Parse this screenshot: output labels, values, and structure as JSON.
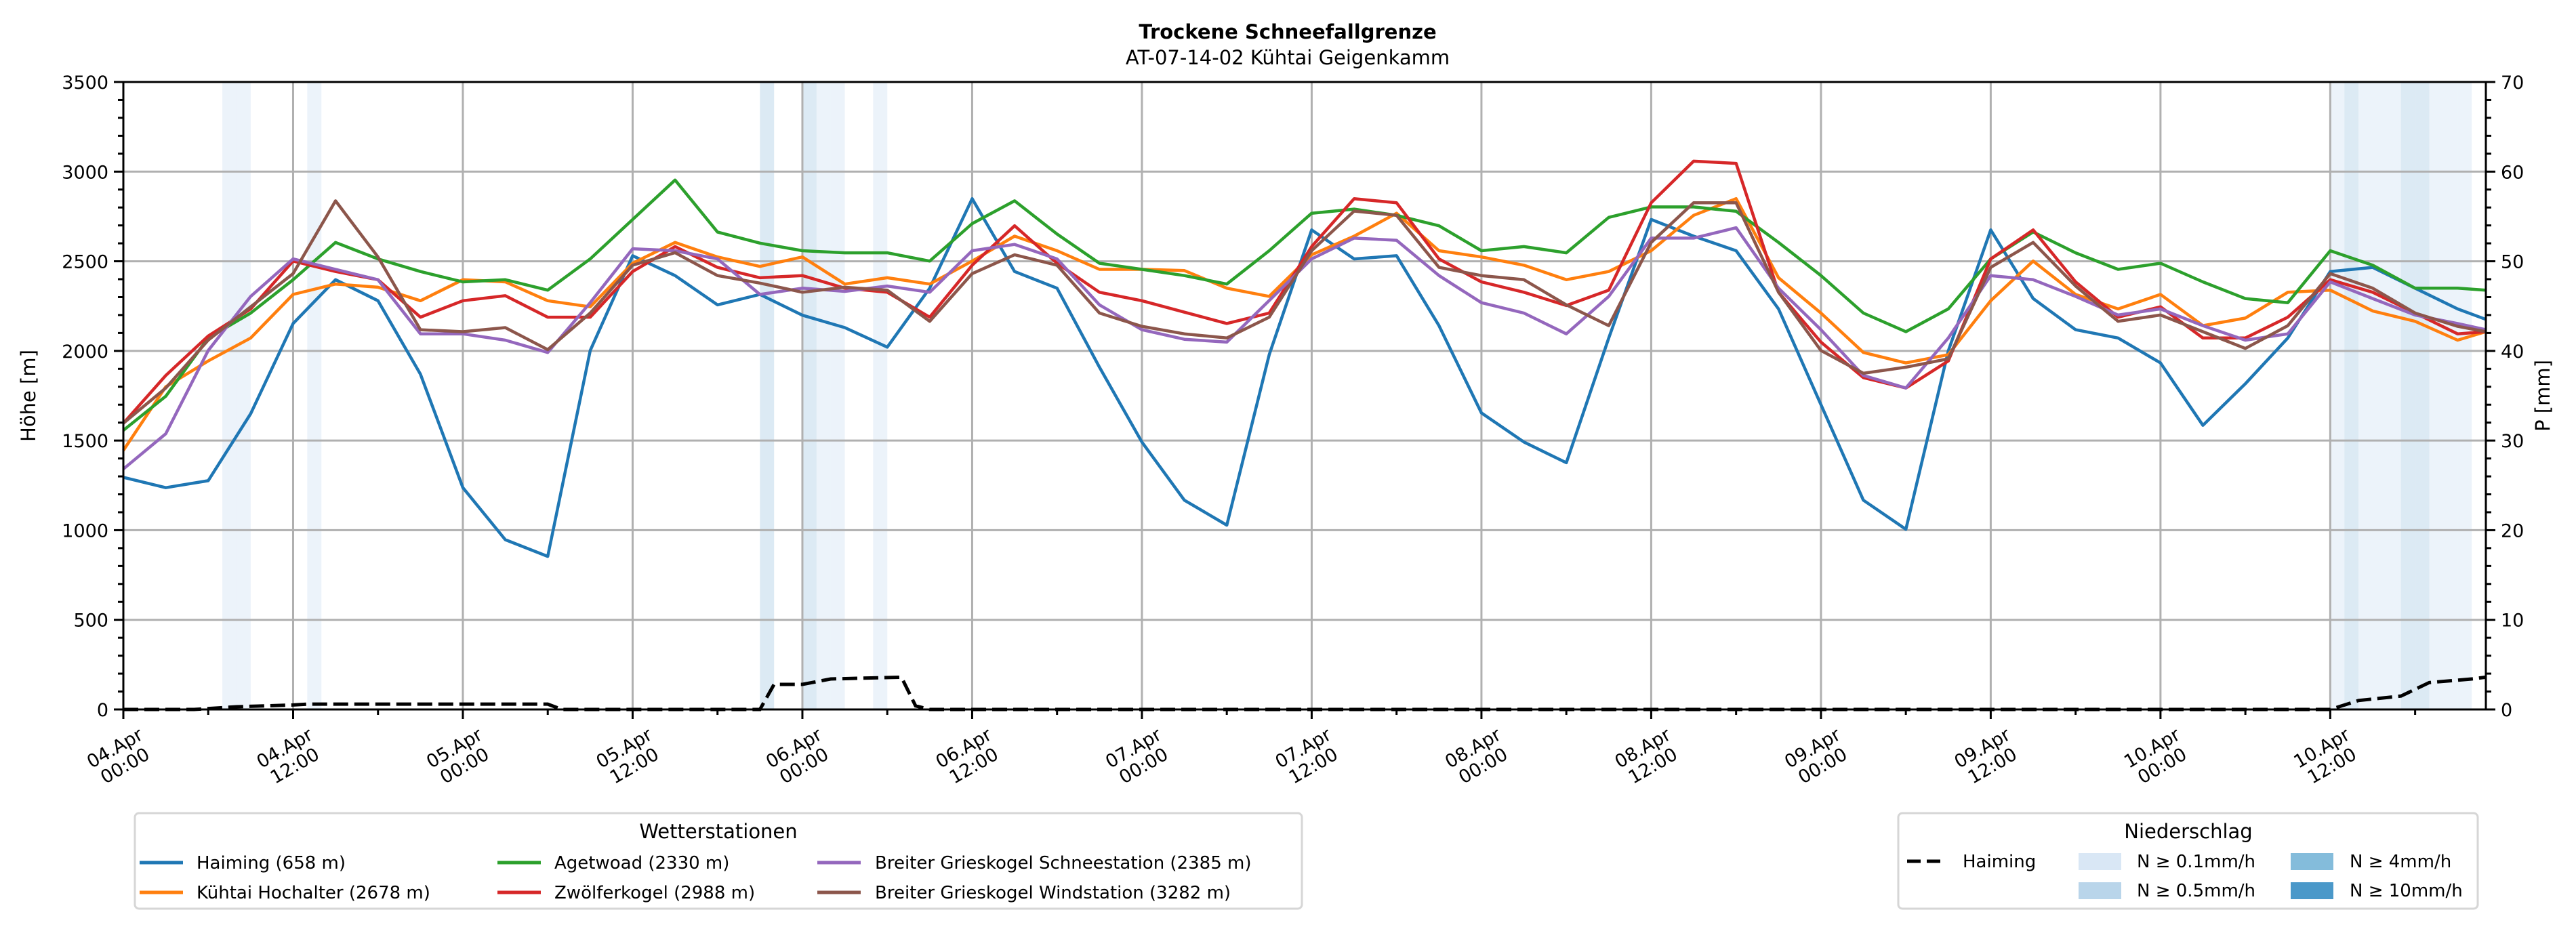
{
  "chart_data": {
    "type": "line",
    "title": "Trockene Schneefallgrenze",
    "subtitle": "AT-07-14-02 Kühtai Geigenkamm",
    "ylabel": "Höhe [m]",
    "ylabel_right": "P [mm]",
    "ylim": [
      0,
      3500
    ],
    "ylim_right": [
      0,
      70
    ],
    "xlim_hours": [
      0,
      167
    ],
    "grid": true,
    "y_ticks": [
      "0",
      "500",
      "1000",
      "1500",
      "2000",
      "2500",
      "3000",
      "3500"
    ],
    "y_right_ticks": [
      "0",
      "10",
      "20",
      "30",
      "40",
      "50",
      "60",
      "70"
    ],
    "x_ticks": [
      [
        "04.Apr",
        "00:00"
      ],
      [
        "04.Apr",
        "12:00"
      ],
      [
        "05.Apr",
        "00:00"
      ],
      [
        "05.Apr",
        "12:00"
      ],
      [
        "06.Apr",
        "00:00"
      ],
      [
        "06.Apr",
        "12:00"
      ],
      [
        "07.Apr",
        "00:00"
      ],
      [
        "07.Apr",
        "12:00"
      ],
      [
        "08.Apr",
        "00:00"
      ],
      [
        "08.Apr",
        "12:00"
      ],
      [
        "09.Apr",
        "00:00"
      ],
      [
        "09.Apr",
        "12:00"
      ],
      [
        "10.Apr",
        "00:00"
      ],
      [
        "10.Apr",
        "12:00"
      ]
    ],
    "x_hours": [
      0,
      3,
      6,
      9,
      12,
      15,
      18,
      21,
      24,
      27,
      30,
      33,
      36,
      39,
      42,
      45,
      48,
      51,
      54,
      57,
      60,
      63,
      66,
      69,
      72,
      75,
      78,
      81,
      84,
      87,
      90,
      93,
      96,
      99,
      102,
      105,
      108,
      111,
      114,
      117,
      120,
      123,
      126,
      129,
      132,
      135,
      138,
      141,
      144,
      147,
      150,
      153,
      156,
      159,
      162,
      165,
      167
    ],
    "series": [
      {
        "name": "Haiming (658 m)",
        "color": "#1f77b4",
        "values": [
          1295,
          1237,
          1276,
          1650,
          2153,
          2397,
          2280,
          1870,
          1237,
          947,
          854,
          2002,
          2531,
          2420,
          2257,
          2315,
          2199,
          2130,
          2021,
          2350,
          2849,
          2443,
          2350,
          1909,
          1492,
          1167,
          1028,
          1979,
          2675,
          2513,
          2531,
          2141,
          1654,
          1492,
          1376,
          2072,
          2733,
          2640,
          2559,
          2234,
          1700,
          1167,
          1005,
          2000,
          2675,
          2292,
          2118,
          2072,
          1933,
          1585,
          1817,
          2072,
          2443,
          2466,
          2350,
          2234,
          2176
        ]
      },
      {
        "name": "Kühtai Hochalter (2678 m)",
        "color": "#ff7f0e",
        "values": [
          1445,
          1800,
          1944,
          2072,
          2315,
          2373,
          2355,
          2280,
          2397,
          2385,
          2280,
          2246,
          2489,
          2605,
          2524,
          2471,
          2524,
          2373,
          2408,
          2373,
          2501,
          2640,
          2559,
          2455,
          2455,
          2448,
          2350,
          2304,
          2536,
          2640,
          2768,
          2559,
          2524,
          2478,
          2397,
          2443,
          2559,
          2756,
          2849,
          2408,
          2211,
          1991,
          1933,
          1979,
          2280,
          2501,
          2315,
          2234,
          2315,
          2141,
          2183,
          2327,
          2339,
          2223,
          2165,
          2060,
          2107
        ]
      },
      {
        "name": "Agetwoad (2330 m)",
        "color": "#2ca02c",
        "values": [
          1557,
          1747,
          2072,
          2211,
          2397,
          2605,
          2513,
          2443,
          2385,
          2397,
          2339,
          2513,
          2733,
          2953,
          2663,
          2601,
          2559,
          2547,
          2547,
          2501,
          2710,
          2837,
          2652,
          2489,
          2455,
          2420,
          2373,
          2559,
          2768,
          2791,
          2756,
          2698,
          2559,
          2582,
          2547,
          2745,
          2803,
          2803,
          2779,
          2605,
          2420,
          2211,
          2107,
          2234,
          2513,
          2663,
          2547,
          2455,
          2489,
          2385,
          2292,
          2269,
          2559,
          2478,
          2350,
          2350,
          2339
        ]
      },
      {
        "name": "Zwölferkogel (2988 m)",
        "color": "#d62728",
        "values": [
          1596,
          1863,
          2083,
          2234,
          2501,
          2443,
          2397,
          2188,
          2280,
          2308,
          2188,
          2188,
          2443,
          2582,
          2466,
          2408,
          2420,
          2350,
          2327,
          2188,
          2478,
          2698,
          2489,
          2327,
          2280,
          2216,
          2153,
          2211,
          2582,
          2849,
          2826,
          2513,
          2385,
          2327,
          2253,
          2339,
          2826,
          3058,
          3046,
          2327,
          2049,
          1851,
          1793,
          1944,
          2513,
          2675,
          2385,
          2188,
          2246,
          2072,
          2072,
          2188,
          2397,
          2327,
          2211,
          2095,
          2107
        ]
      },
      {
        "name": "Breiter Grieskogel Schneestation (2385 m)",
        "color": "#9467bd",
        "values": [
          1341,
          1538,
          2002,
          2304,
          2513,
          2455,
          2397,
          2095,
          2095,
          2060,
          1991,
          2269,
          2570,
          2559,
          2513,
          2315,
          2350,
          2332,
          2362,
          2327,
          2559,
          2594,
          2513,
          2257,
          2118,
          2065,
          2049,
          2281,
          2513,
          2629,
          2617,
          2420,
          2269,
          2211,
          2095,
          2304,
          2629,
          2629,
          2687,
          2350,
          2118,
          1863,
          1793,
          2072,
          2420,
          2397,
          2304,
          2200,
          2234,
          2141,
          2060,
          2095,
          2385,
          2292,
          2200,
          2153,
          2118
        ]
      },
      {
        "name": "Breiter Grieskogel Windstation (3282 m)",
        "color": "#8c564b",
        "values": [
          1596,
          1793,
          2060,
          2246,
          2431,
          2837,
          2524,
          2118,
          2107,
          2130,
          2007,
          2211,
          2478,
          2548,
          2420,
          2378,
          2327,
          2355,
          2339,
          2165,
          2431,
          2536,
          2478,
          2211,
          2137,
          2095,
          2072,
          2188,
          2559,
          2780,
          2756,
          2466,
          2420,
          2397,
          2257,
          2141,
          2605,
          2826,
          2826,
          2327,
          2002,
          1875,
          1909,
          1956,
          2466,
          2605,
          2362,
          2165,
          2200,
          2107,
          2014,
          2141,
          2431,
          2350,
          2211,
          2137,
          2107
        ]
      }
    ],
    "precip_line": {
      "name": "Haiming",
      "axis": "right",
      "points": [
        [
          0,
          0
        ],
        [
          5,
          0
        ],
        [
          8,
          0.3
        ],
        [
          12,
          0.5
        ],
        [
          13,
          0.6
        ],
        [
          30,
          0.6
        ],
        [
          31,
          0
        ],
        [
          45,
          0
        ],
        [
          46,
          2.8
        ],
        [
          48,
          2.8
        ],
        [
          50,
          3.4
        ],
        [
          55,
          3.6
        ],
        [
          56,
          0.4
        ],
        [
          57,
          0
        ],
        [
          156,
          0
        ],
        [
          158,
          1.0
        ],
        [
          161,
          1.5
        ],
        [
          163,
          3.0
        ],
        [
          166,
          3.4
        ],
        [
          167,
          3.6
        ]
      ]
    },
    "precip_bands": [
      {
        "hour": 7,
        "level": 0
      },
      {
        "hour": 8,
        "level": 0
      },
      {
        "hour": 13,
        "level": 0
      },
      {
        "hour": 45,
        "level": 1
      },
      {
        "hour": 48,
        "level": 1
      },
      {
        "hour": 49,
        "level": 0
      },
      {
        "hour": 50,
        "level": 0
      },
      {
        "hour": 53,
        "level": 0
      },
      {
        "hour": 156,
        "level": 0
      },
      {
        "hour": 157,
        "level": 1
      },
      {
        "hour": 158,
        "level": 0
      },
      {
        "hour": 159,
        "level": 0
      },
      {
        "hour": 160,
        "level": 0
      },
      {
        "hour": 161,
        "level": 1
      },
      {
        "hour": 162,
        "level": 1
      },
      {
        "hour": 163,
        "level": 0
      },
      {
        "hour": 164,
        "level": 0
      },
      {
        "hour": 165,
        "level": 0
      }
    ],
    "legend_stations": {
      "title": "Wetterstationen",
      "placement": "bottom-left"
    },
    "legend_precip": {
      "title": "Niederschlag",
      "placement": "bottom-right",
      "line_label": "Haiming",
      "levels": [
        {
          "label": "N ≥ 0.1mm/h",
          "color": "#d9e7f5"
        },
        {
          "label": "N ≥ 0.5mm/h",
          "color": "#b9d5ea"
        },
        {
          "label": "N ≥ 4mm/h",
          "color": "#84bcdb"
        },
        {
          "label": "N ≥ 10mm/h",
          "color": "#4a98c9"
        }
      ]
    }
  }
}
